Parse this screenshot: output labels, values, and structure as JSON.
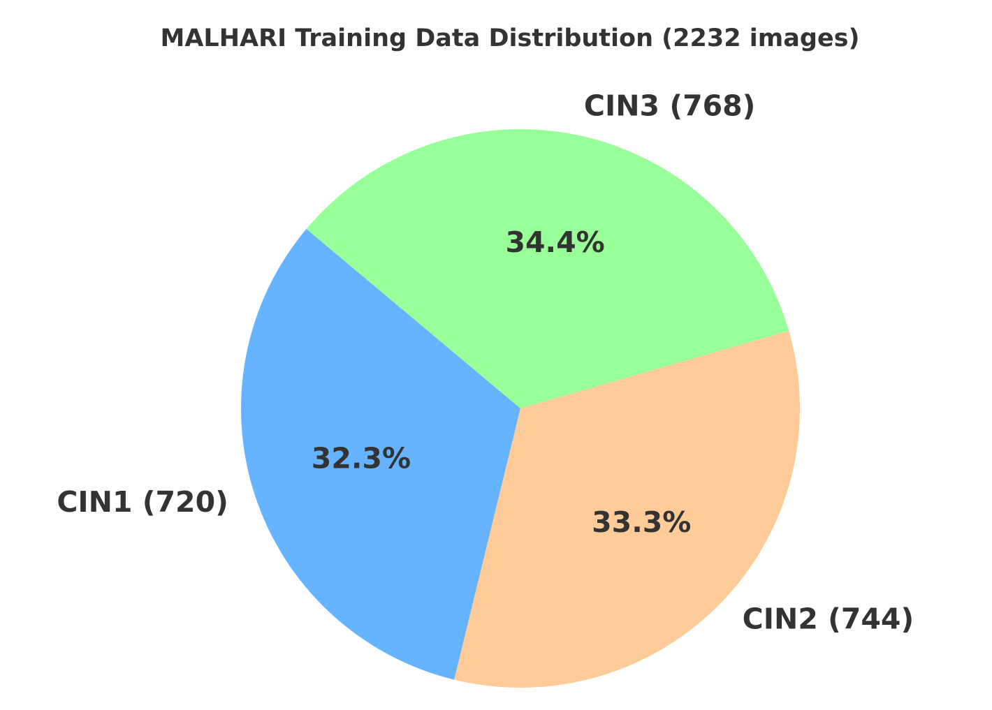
{
  "chart_data": {
    "type": "pie",
    "title": "MALHARI Training Data Distribution (2232 images)",
    "categories": [
      "CIN1 (720)",
      "CIN2 (744)",
      "CIN3 (768)"
    ],
    "values": [
      32.3,
      33.3,
      34.4
    ],
    "value_labels": [
      "32.3%",
      "33.3%",
      "34.4%"
    ],
    "colors": [
      "#66b3ff",
      "#ffcc99",
      "#99ff99"
    ]
  }
}
